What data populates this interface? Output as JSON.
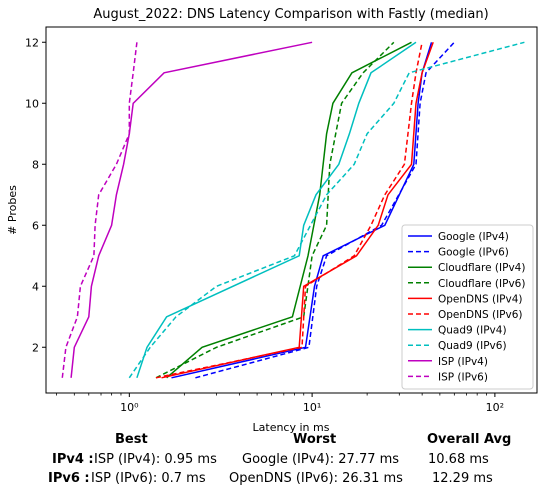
{
  "chart_data": {
    "type": "line",
    "title": "August_2022: DNS Latency Comparison with Fastly (median)",
    "xlabel": "Latency in ms",
    "ylabel": "# Probes",
    "xscale": "log",
    "xlim": [
      0.35,
      170
    ],
    "ylim": [
      0.5,
      12.5
    ],
    "xticks": [
      {
        "value": 1,
        "label": "10⁰"
      },
      {
        "value": 10,
        "label": "10¹"
      },
      {
        "value": 100,
        "label": "10²"
      }
    ],
    "yticks": [
      2,
      4,
      6,
      8,
      10,
      12
    ],
    "legend": "lower-right",
    "grid": false,
    "series": [
      {
        "name": "Google (IPv4)",
        "color": "#0000ff",
        "dash": "solid",
        "points": [
          [
            1.7,
            1
          ],
          [
            9.2,
            2
          ],
          [
            10.3,
            4
          ],
          [
            11.5,
            5
          ],
          [
            25,
            6
          ],
          [
            36,
            8
          ],
          [
            38,
            10
          ],
          [
            40,
            11
          ],
          [
            45,
            12
          ]
        ]
      },
      {
        "name": "Google (IPv6)",
        "color": "#0000ff",
        "dash": "dashed",
        "points": [
          [
            2.3,
            1
          ],
          [
            9.6,
            2
          ],
          [
            10.6,
            4
          ],
          [
            12,
            5
          ],
          [
            24,
            6
          ],
          [
            37,
            8
          ],
          [
            39,
            10
          ],
          [
            42,
            11
          ],
          [
            60,
            12
          ]
        ]
      },
      {
        "name": "Cloudflare (IPv4)",
        "color": "#008000",
        "dash": "solid",
        "points": [
          [
            1.6,
            1
          ],
          [
            2.5,
            2
          ],
          [
            7.8,
            3
          ],
          [
            9.5,
            5
          ],
          [
            11,
            7
          ],
          [
            12,
            9
          ],
          [
            13,
            10
          ],
          [
            16.5,
            11
          ],
          [
            35,
            12
          ]
        ]
      },
      {
        "name": "Cloudflare (IPv6)",
        "color": "#008000",
        "dash": "dashed",
        "points": [
          [
            1.4,
            1
          ],
          [
            3,
            2
          ],
          [
            9,
            3
          ],
          [
            10,
            5
          ],
          [
            12,
            6
          ],
          [
            12.5,
            8
          ],
          [
            14.5,
            10
          ],
          [
            19,
            11
          ],
          [
            28,
            12
          ]
        ]
      },
      {
        "name": "OpenDNS (IPv4)",
        "color": "#ff0000",
        "dash": "solid",
        "points": [
          [
            1.5,
            1
          ],
          [
            8.5,
            2
          ],
          [
            9,
            4
          ],
          [
            17.5,
            5
          ],
          [
            23,
            6
          ],
          [
            26,
            7
          ],
          [
            35,
            8
          ],
          [
            37,
            10
          ],
          [
            40,
            11
          ],
          [
            46,
            12
          ]
        ]
      },
      {
        "name": "OpenDNS (IPv6)",
        "color": "#ff0000",
        "dash": "dashed",
        "points": [
          [
            1.4,
            1
          ],
          [
            8.8,
            2
          ],
          [
            9.2,
            4
          ],
          [
            17,
            5
          ],
          [
            21,
            6
          ],
          [
            25,
            7
          ],
          [
            32,
            8
          ],
          [
            35,
            10
          ],
          [
            37,
            11
          ],
          [
            40,
            12
          ]
        ]
      },
      {
        "name": "Quad9 (IPv4)",
        "color": "#00bfbf",
        "dash": "solid",
        "points": [
          [
            1.1,
            1
          ],
          [
            1.25,
            2
          ],
          [
            1.6,
            3
          ],
          [
            8.5,
            5
          ],
          [
            9,
            6
          ],
          [
            10.5,
            7
          ],
          [
            14,
            8
          ],
          [
            16,
            9
          ],
          [
            18,
            10
          ],
          [
            21,
            11
          ],
          [
            37,
            12
          ]
        ]
      },
      {
        "name": "Quad9 (IPv6)",
        "color": "#00bfbf",
        "dash": "dashed",
        "points": [
          [
            1.0,
            1
          ],
          [
            1.3,
            2
          ],
          [
            1.8,
            3
          ],
          [
            3,
            4
          ],
          [
            8,
            5
          ],
          [
            12,
            7
          ],
          [
            17,
            8
          ],
          [
            20,
            9
          ],
          [
            28,
            10
          ],
          [
            34,
            11
          ],
          [
            145,
            12
          ]
        ]
      },
      {
        "name": "ISP (IPv4)",
        "color": "#bf00bf",
        "dash": "solid",
        "points": [
          [
            0.48,
            1
          ],
          [
            0.5,
            2
          ],
          [
            0.6,
            3
          ],
          [
            0.62,
            4
          ],
          [
            0.68,
            5
          ],
          [
            0.8,
            6
          ],
          [
            0.85,
            7
          ],
          [
            0.93,
            8
          ],
          [
            1.0,
            9
          ],
          [
            1.05,
            10
          ],
          [
            1.55,
            11
          ],
          [
            10,
            12
          ]
        ]
      },
      {
        "name": "ISP (IPv6)",
        "color": "#bf00bf",
        "dash": "dashed",
        "points": [
          [
            0.43,
            1
          ],
          [
            0.45,
            2
          ],
          [
            0.52,
            3
          ],
          [
            0.54,
            4
          ],
          [
            0.64,
            5
          ],
          [
            0.65,
            6
          ],
          [
            0.68,
            7
          ],
          [
            0.85,
            8
          ],
          [
            1.0,
            9
          ],
          [
            1.0,
            10
          ],
          [
            1.05,
            11
          ],
          [
            1.1,
            12
          ]
        ]
      }
    ]
  },
  "summary": {
    "headers": {
      "best": "Best",
      "worst": "Worst",
      "avg": "Overall Avg"
    },
    "rows": [
      {
        "label": "IPv4 :",
        "best": "ISP (IPv4): 0.95 ms",
        "worst": "Google (IPv4): 27.77 ms",
        "avg": "10.68 ms"
      },
      {
        "label": "IPv6 :",
        "best": "ISP (IPv6): 0.7 ms",
        "worst": "OpenDNS (IPv6): 26.31 ms",
        "avg": "12.29 ms"
      }
    ]
  }
}
